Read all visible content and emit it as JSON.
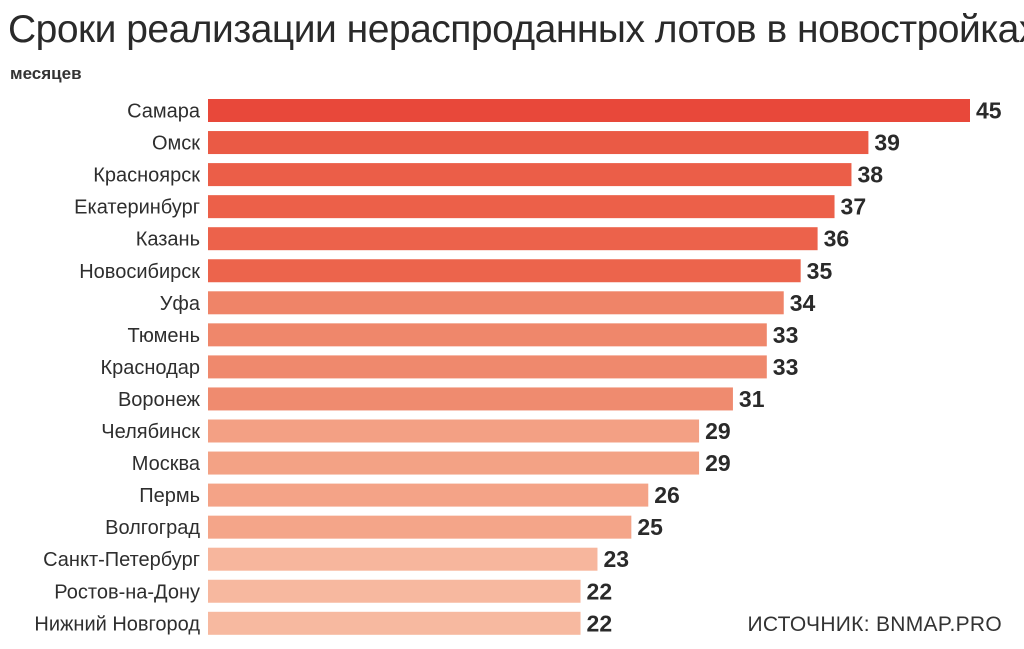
{
  "chart_data": {
    "type": "bar",
    "orientation": "horizontal",
    "title": "Сроки реализации нераспроданных лотов в новостройках",
    "unit_label": "месяцев",
    "categories": [
      "Самара",
      "Омск",
      "Красноярск",
      "Екатеринбург",
      "Казань",
      "Новосибирск",
      "Уфа",
      "Тюмень",
      "Краснодар",
      "Воронеж",
      "Челябинск",
      "Москва",
      "Пермь",
      "Волгоград",
      "Санкт-Петербург",
      "Ростов-на-Дону",
      "Нижний Новгород"
    ],
    "values": [
      45,
      39,
      38,
      37,
      36,
      35,
      34,
      33,
      33,
      31,
      29,
      29,
      26,
      25,
      23,
      22,
      22
    ],
    "bar_colors": [
      "#e8483a",
      "#ea5a45",
      "#eb5e48",
      "#ec6049",
      "#ec624b",
      "#ec644c",
      "#ef8468",
      "#ef876b",
      "#ef896d",
      "#ef8b6f",
      "#f3a084",
      "#f3a285",
      "#f4a387",
      "#f4a589",
      "#f7b69d",
      "#f7b89f",
      "#f7b9a0"
    ],
    "grid": false,
    "legend": "none"
  },
  "source": "ИСТОЧНИК: BNMAP.PRO"
}
